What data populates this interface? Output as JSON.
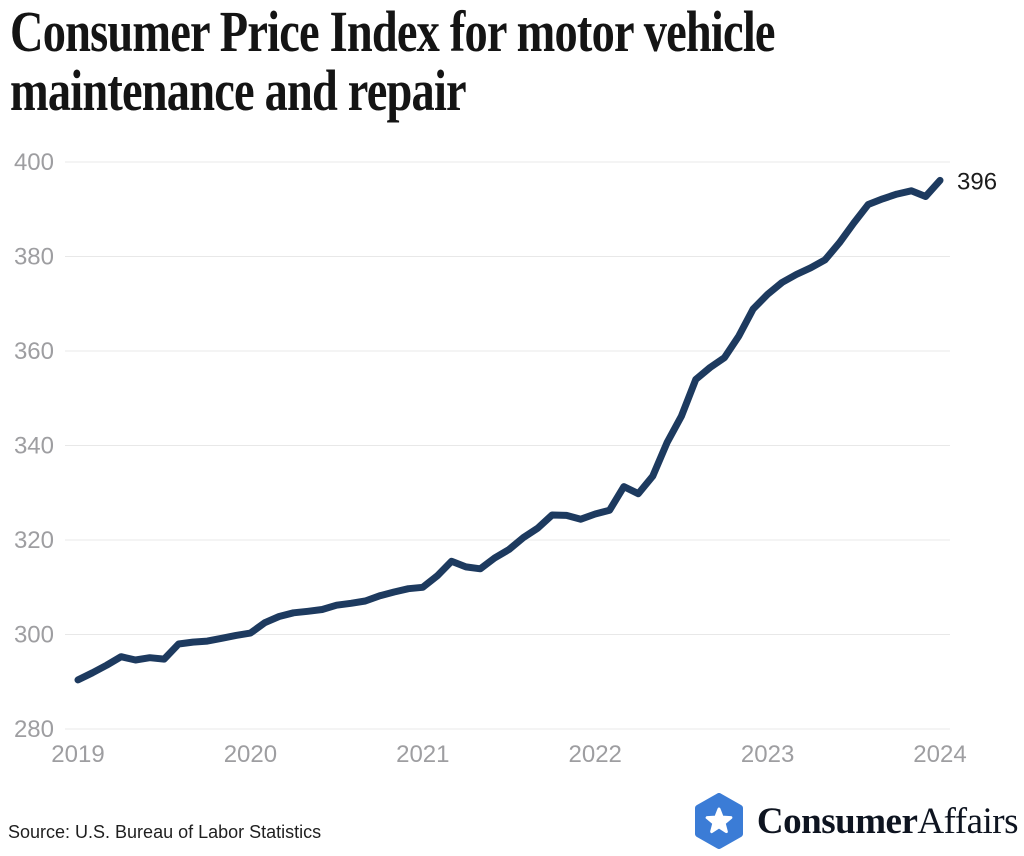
{
  "header": {
    "title": "Consumer Price Index for motor vehicle maintenance and repair"
  },
  "chart_data": {
    "type": "line",
    "title": "Consumer Price Index for motor vehicle maintenance and repair",
    "x_unit": "month",
    "x_range": [
      "2019-01",
      "2024-01"
    ],
    "x_tick_labels": [
      "2019",
      "2020",
      "2021",
      "2022",
      "2023",
      "2024"
    ],
    "y_ticks": [
      400,
      380,
      360,
      340,
      320,
      300,
      280
    ],
    "ylim": [
      280,
      405
    ],
    "grid": "horizontal",
    "legend": "none",
    "line_color": "#1d3a5f",
    "end_label": "396",
    "series": [
      {
        "name": "CPI, motor vehicle maintenance and repair",
        "frequency": "monthly",
        "values": [
          290.4,
          291.9,
          293.5,
          295.3,
          294.6,
          295.1,
          294.8,
          298.0,
          298.4,
          298.6,
          299.2,
          299.8,
          300.3,
          302.5,
          303.8,
          304.6,
          304.9,
          305.3,
          306.2,
          306.6,
          307.1,
          308.2,
          309.0,
          309.7,
          310.0,
          312.4,
          315.5,
          314.3,
          313.9,
          316.2,
          318.0,
          320.5,
          322.5,
          325.3,
          325.2,
          324.4,
          325.5,
          326.3,
          331.3,
          329.8,
          333.5,
          340.6,
          346.2,
          354.0,
          356.5,
          358.6,
          363.2,
          368.9,
          372.0,
          374.5,
          376.2,
          377.6,
          379.3,
          382.9,
          387.1,
          391.0,
          392.2,
          393.2,
          393.9,
          392.7,
          396.1
        ]
      }
    ]
  },
  "footer": {
    "source": "Source: U.S. Bureau of Labor Statistics",
    "logo": {
      "icon": "hexagon-star-badge-icon",
      "icon_color": "#3b7cd6",
      "star_color": "#ffffff",
      "part1": "Consumer",
      "part2": "Affairs"
    }
  }
}
